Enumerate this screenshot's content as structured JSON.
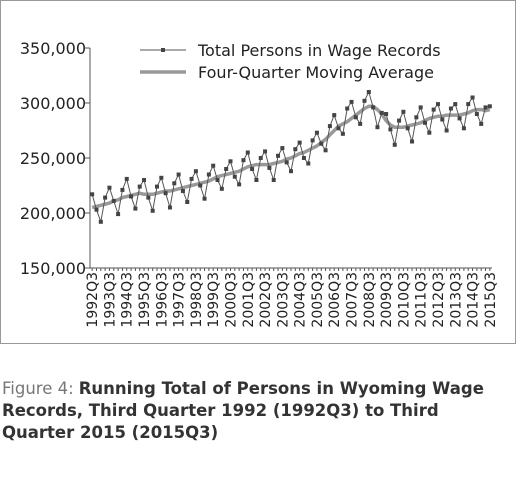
{
  "chart_data": {
    "type": "line",
    "figure_label": "Figure 4:",
    "caption": "Running Total of Persons in Wyoming Wage Records, Third Quarter 1992 (1992Q3) to Third Quarter 2015 (2015Q3)",
    "categories": [
      "1992Q3",
      null,
      null,
      null,
      "1993Q3",
      null,
      null,
      null,
      "1994Q3",
      null,
      null,
      null,
      "1995Q3",
      null,
      null,
      null,
      "1996Q3",
      null,
      null,
      null,
      "1997Q3",
      null,
      null,
      null,
      "1998Q3",
      null,
      null,
      null,
      "1999Q3",
      null,
      null,
      null,
      "2000Q3",
      null,
      null,
      null,
      "2001Q3",
      null,
      null,
      null,
      "2002Q3",
      null,
      null,
      null,
      "2003Q3",
      null,
      null,
      null,
      "2004Q3",
      null,
      null,
      null,
      "2005Q3",
      null,
      null,
      null,
      "2006Q3",
      null,
      null,
      null,
      "2007Q3",
      null,
      null,
      null,
      "2008Q3",
      null,
      null,
      null,
      "2009Q3",
      null,
      null,
      null,
      "2010Q3",
      null,
      null,
      null,
      "2011Q3",
      null,
      null,
      null,
      "2012Q3",
      null,
      null,
      null,
      "2013Q3",
      null,
      null,
      null,
      "2014Q3",
      null,
      null,
      null,
      "2015Q3"
    ],
    "series": [
      {
        "name": "Total Persons in Wage Records",
        "color": "#555555",
        "markers": true,
        "values": [
          217000,
          203000,
          192000,
          214000,
          223000,
          211000,
          199000,
          221000,
          231000,
          215000,
          204000,
          224000,
          230000,
          214000,
          202000,
          224000,
          232000,
          218000,
          205000,
          227000,
          235000,
          220000,
          210000,
          231000,
          238000,
          225000,
          213000,
          235000,
          243000,
          230000,
          222000,
          240000,
          247000,
          233000,
          226000,
          248000,
          255000,
          240000,
          230000,
          250000,
          256000,
          241000,
          230000,
          252000,
          259000,
          246000,
          238000,
          258000,
          264000,
          250000,
          245000,
          266000,
          273000,
          263000,
          257000,
          279000,
          289000,
          277000,
          272000,
          295000,
          301000,
          287000,
          281000,
          302000,
          310000,
          296000,
          278000,
          291000,
          290000,
          276000,
          262000,
          284000,
          292000,
          277000,
          265000,
          287000,
          296000,
          282000,
          273000,
          294000,
          299000,
          285000,
          275000,
          295000,
          299000,
          286000,
          277000,
          299000,
          305000,
          290000,
          281000,
          296000,
          297000
        ]
      },
      {
        "name": "Four-Quarter Moving Average",
        "color": "#999999",
        "markers": false,
        "values": [
          205000,
          206000,
          207000,
          208000,
          209000,
          211000,
          212000,
          214000,
          215000,
          216000,
          217000,
          218000,
          217000,
          217000,
          217000,
          218000,
          219000,
          220000,
          220000,
          221000,
          222000,
          223000,
          224000,
          225000,
          226000,
          227000,
          228000,
          229000,
          231000,
          233000,
          234000,
          235000,
          236000,
          237000,
          238000,
          240000,
          242000,
          243000,
          244000,
          244000,
          244000,
          244000,
          245000,
          246000,
          247000,
          249000,
          250000,
          252000,
          254000,
          255000,
          257000,
          259000,
          261000,
          264000,
          267000,
          271000,
          275000,
          279000,
          281000,
          283000,
          286000,
          289000,
          292000,
          295000,
          297000,
          297000,
          294000,
          290000,
          284000,
          280000,
          278000,
          278000,
          278000,
          279000,
          280000,
          281000,
          282000,
          284000,
          286000,
          287000,
          288000,
          288000,
          289000,
          289000,
          289000,
          289000,
          290000,
          291000,
          293000,
          294000,
          294000,
          293000,
          294000
        ]
      }
    ],
    "ylim": [
      150000,
      350000
    ],
    "yticks": [
      {
        "value": 150000,
        "label": "150,000"
      },
      {
        "value": 200000,
        "label": "200,000"
      },
      {
        "value": 250000,
        "label": "250,000"
      },
      {
        "value": 300000,
        "label": "300,000"
      },
      {
        "value": 350000,
        "label": "350,000"
      }
    ],
    "grid": false,
    "legend": "top"
  }
}
